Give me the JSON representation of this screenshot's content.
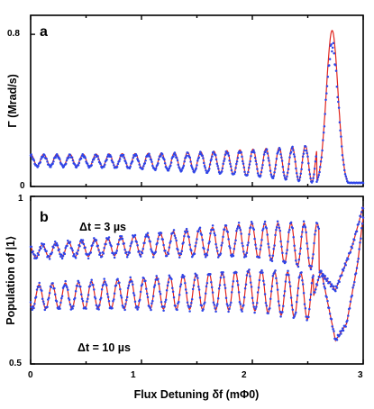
{
  "chart_data": [
    {
      "panel_label": "a",
      "type": "line",
      "ylabel": "Γ (Mrad/s)",
      "yticks": [
        "0",
        "0.8"
      ],
      "xlim": [
        0,
        3
      ],
      "ylim": [
        0,
        0.9
      ],
      "series": [
        {
          "role": "data",
          "marker": "dots",
          "color": "#2f45e8"
        },
        {
          "role": "fit",
          "marker": "line",
          "color": "#e0241d"
        }
      ],
      "points_x": [
        0.0,
        0.14,
        0.28,
        0.42,
        0.56,
        0.7,
        0.84,
        0.98,
        1.12,
        1.26,
        1.4,
        1.54,
        1.68,
        1.82,
        1.96,
        2.1,
        2.24,
        2.38,
        2.48,
        2.58,
        2.65,
        2.7,
        2.74,
        2.8,
        2.88,
        2.96
      ],
      "points_y": [
        0.15,
        0.16,
        0.17,
        0.17,
        0.18,
        0.19,
        0.2,
        0.21,
        0.22,
        0.23,
        0.24,
        0.25,
        0.27,
        0.29,
        0.31,
        0.33,
        0.36,
        0.4,
        0.45,
        0.35,
        0.62,
        0.8,
        0.82,
        0.72,
        0.3,
        0.08
      ],
      "envelope": {
        "base": [
          0.11,
          0.02
        ],
        "amp": [
          0.06,
          0.2
        ],
        "x_end": 2.58,
        "period": 0.118
      }
    },
    {
      "panel_label": "b",
      "type": "line",
      "ylabel": "Population of |1⟩",
      "xlabel": "Flux Detuning δf (mΦ0)",
      "xticks": [
        "0",
        "1",
        "2",
        "3"
      ],
      "yticks": [
        "0.5",
        "1"
      ],
      "xlim": [
        0,
        3
      ],
      "ylim": [
        0.5,
        1.0
      ],
      "annotations": [
        "Δt = 3 µs",
        "Δt = 10 µs"
      ],
      "series": [
        {
          "name": "Δt = 3 µs",
          "role": "data+fit",
          "mean_y": [
            0.835,
            0.855,
            0.87,
            0.85
          ],
          "mean_x": [
            0,
            1.0,
            2.0,
            2.6
          ],
          "amp_y": [
            0.018,
            0.03,
            0.05,
            0.07
          ],
          "tail": [
            [
              2.6,
              0.78
            ],
            [
              2.75,
              0.72
            ],
            [
              2.9,
              0.85
            ],
            [
              3.0,
              0.97
            ]
          ]
        },
        {
          "name": "Δt = 10 µs",
          "role": "data+fit",
          "mean_y": [
            0.7,
            0.71,
            0.72,
            0.7
          ],
          "mean_x": [
            0,
            1.0,
            2.0,
            2.55
          ],
          "amp_y": [
            0.035,
            0.045,
            0.06,
            0.07
          ],
          "tail": [
            [
              2.55,
              0.7
            ],
            [
              2.62,
              0.78
            ],
            [
              2.75,
              0.57
            ],
            [
              2.85,
              0.62
            ],
            [
              2.95,
              0.8
            ],
            [
              3.0,
              0.94
            ]
          ]
        }
      ],
      "period": 0.118
    }
  ]
}
